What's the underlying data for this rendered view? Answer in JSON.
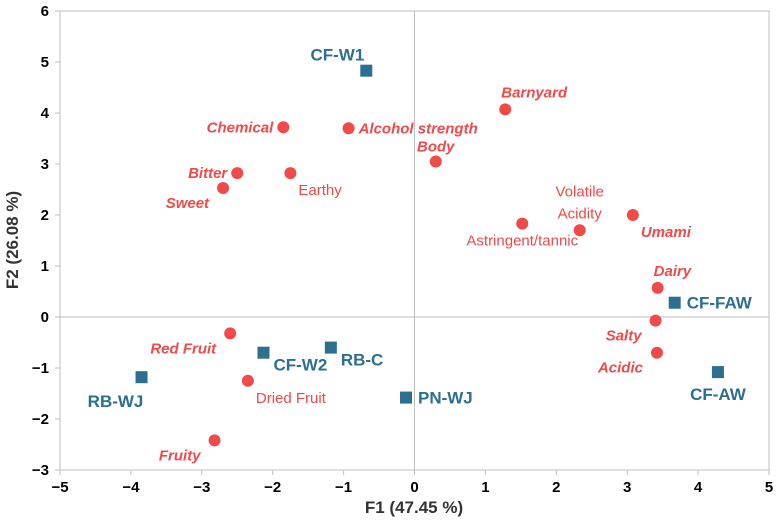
{
  "chart_data": {
    "type": "scatter",
    "title": "",
    "xlabel": "F1 (47.45 %)",
    "ylabel": "F2 (26.08 %)",
    "xlim": [
      -5,
      5
    ],
    "ylim": [
      -3,
      6
    ],
    "x_ticks": [
      -5,
      -4,
      -3,
      -2,
      -1,
      0,
      1,
      2,
      3,
      4,
      5
    ],
    "y_ticks": [
      -3,
      -2,
      -1,
      0,
      1,
      2,
      3,
      4,
      5,
      6
    ],
    "colors": {
      "attributes": "#f04a4a",
      "samples": "#2e6e8e",
      "axis": "#bfbfbf",
      "tick_text": "#000000"
    },
    "series": [
      {
        "name": "attributes",
        "marker": "circle",
        "points": [
          {
            "label": "Chemical",
            "x": -1.85,
            "y": 3.72,
            "style": "bold-italic",
            "anchor": "left"
          },
          {
            "label": "Alcohol strength",
            "x": -0.93,
            "y": 3.7,
            "style": "bold-italic",
            "anchor": "right"
          },
          {
            "label": "Barnyard",
            "x": 1.28,
            "y": 4.07,
            "style": "bold-italic",
            "anchor": "above-right"
          },
          {
            "label": "Body",
            "x": 0.3,
            "y": 3.05,
            "style": "bold-italic",
            "anchor": "above"
          },
          {
            "label": "Bitter",
            "x": -2.5,
            "y": 2.82,
            "style": "bold-italic",
            "anchor": "left"
          },
          {
            "label": "Earthy",
            "x": -1.75,
            "y": 2.82,
            "style": "normal",
            "anchor": "below-right"
          },
          {
            "label": "Sweet",
            "x": -2.7,
            "y": 2.53,
            "style": "bold-italic",
            "anchor": "below-left"
          },
          {
            "label": "Astringent/tannic",
            "x": 1.52,
            "y": 1.83,
            "style": "normal",
            "anchor": "below"
          },
          {
            "label": "Volatile Acidity",
            "x": 2.33,
            "y": 1.7,
            "style": "normal",
            "anchor": "above"
          },
          {
            "label": "Umami",
            "x": 3.08,
            "y": 2.0,
            "style": "bold-italic",
            "anchor": "below-right"
          },
          {
            "label": "Dairy",
            "x": 3.43,
            "y": 0.57,
            "style": "bold-italic",
            "anchor": "above-right"
          },
          {
            "label": "Salty",
            "x": 3.4,
            "y": -0.07,
            "style": "bold-italic",
            "anchor": "below-left"
          },
          {
            "label": "Acidic",
            "x": 3.42,
            "y": -0.7,
            "style": "bold-italic",
            "anchor": "below-left"
          },
          {
            "label": "Red Fruit",
            "x": -2.6,
            "y": -0.32,
            "style": "bold-italic",
            "anchor": "below-left"
          },
          {
            "label": "Dried Fruit",
            "x": -2.35,
            "y": -1.25,
            "style": "normal",
            "anchor": "below-right"
          },
          {
            "label": "Fruity",
            "x": -2.82,
            "y": -2.42,
            "style": "bold-italic",
            "anchor": "below-left"
          }
        ]
      },
      {
        "name": "samples",
        "marker": "square",
        "points": [
          {
            "label": "CF-W1",
            "x": -0.68,
            "y": 4.83,
            "anchor": "above-left"
          },
          {
            "label": "CF-FAW",
            "x": 3.67,
            "y": 0.28,
            "anchor": "right"
          },
          {
            "label": "RB-C",
            "x": -1.18,
            "y": -0.6,
            "anchor": "below-right"
          },
          {
            "label": "CF-W2",
            "x": -2.13,
            "y": -0.7,
            "anchor": "below-right"
          },
          {
            "label": "RB-WJ",
            "x": -3.85,
            "y": -1.18,
            "anchor": "below-left"
          },
          {
            "label": "PN-WJ",
            "x": -0.12,
            "y": -1.58,
            "anchor": "right"
          },
          {
            "label": "CF-AW",
            "x": 4.28,
            "y": -1.08,
            "anchor": "below"
          }
        ]
      }
    ]
  }
}
